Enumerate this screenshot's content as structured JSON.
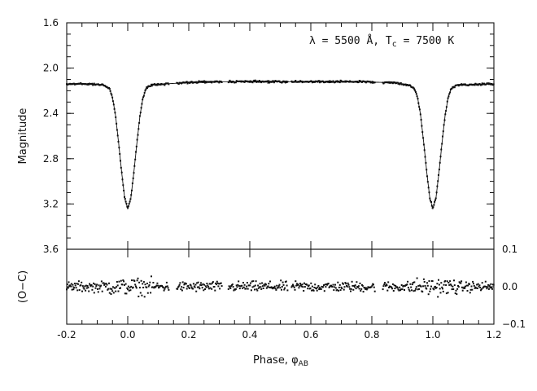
{
  "chart_data": [
    {
      "type": "scatter",
      "panel": "light-curve",
      "title": "",
      "annotation": "λ = 5500 Å,  T",
      "annotation_sub": "c",
      "annotation_tail": " = 7500 K",
      "xlabel": "Phase, φ",
      "xlabel_sub": "AB",
      "ylabel": "Magnitude",
      "xlim": [
        -0.2,
        1.2
      ],
      "ylim": [
        3.6,
        1.6
      ],
      "y_inverted": true,
      "x_ticks": [
        -0.2,
        0.0,
        0.2,
        0.4,
        0.6,
        0.8,
        1.0,
        1.2
      ],
      "x_tick_labels": [
        "-0.2",
        "0.0",
        "0.2",
        "0.4",
        "0.6",
        "0.8",
        "1.0",
        "1.2"
      ],
      "y_ticks": [
        1.6,
        2.0,
        2.4,
        2.8,
        3.2,
        3.6
      ],
      "y_tick_labels": [
        "1.6",
        "2.0",
        "2.4",
        "2.8",
        "3.2",
        "3.6"
      ],
      "model_curve": {
        "x": [
          -0.2,
          -0.12,
          -0.08,
          -0.06,
          -0.05,
          -0.04,
          -0.03,
          -0.02,
          -0.01,
          0.0,
          0.01,
          0.02,
          0.03,
          0.04,
          0.05,
          0.06,
          0.08,
          0.12,
          0.25,
          0.38,
          0.5,
          0.62,
          0.75,
          0.88,
          0.92,
          0.94,
          0.95,
          0.96,
          0.97,
          0.98,
          0.99,
          1.0,
          1.01,
          1.02,
          1.03,
          1.04,
          1.05,
          1.06,
          1.08,
          1.2
        ],
        "y": [
          2.14,
          2.14,
          2.15,
          2.18,
          2.26,
          2.42,
          2.66,
          2.92,
          3.15,
          3.24,
          3.15,
          2.92,
          2.66,
          2.42,
          2.26,
          2.18,
          2.15,
          2.14,
          2.12,
          2.12,
          2.12,
          2.12,
          2.12,
          2.13,
          2.15,
          2.18,
          2.26,
          2.42,
          2.66,
          2.92,
          3.15,
          3.24,
          3.15,
          2.92,
          2.66,
          2.42,
          2.26,
          2.18,
          2.15,
          2.14
        ]
      },
      "observed": {
        "description_units": "phase vs magnitude",
        "coverage_x": [
          -0.2,
          1.2
        ],
        "out_of_eclipse_magnitude": 2.13,
        "primary_minimum_phases": [
          0.0,
          1.0
        ],
        "primary_minimum_magnitude": 3.24,
        "scatter_magnitude": 0.012
      }
    },
    {
      "type": "scatter",
      "panel": "residuals",
      "ylabel": "(O−C)",
      "xlim": [
        -0.2,
        1.2
      ],
      "ylim": [
        -0.1,
        0.1
      ],
      "y_ticks": [
        0.1,
        0.0,
        -0.1
      ],
      "y_tick_labels": [
        "0.1",
        "0.0",
        "−0.1"
      ],
      "x_ticks": [
        -0.2,
        0.0,
        0.2,
        0.4,
        0.6,
        0.8,
        1.0,
        1.2
      ],
      "residuals": {
        "center": 0.0,
        "typical_scatter": 0.02,
        "max_abs": 0.07,
        "data_gaps_phase": [
          [
            0.135,
            0.16
          ],
          [
            0.31,
            0.33
          ],
          [
            0.525,
            0.535
          ],
          [
            0.81,
            0.835
          ]
        ]
      }
    }
  ]
}
